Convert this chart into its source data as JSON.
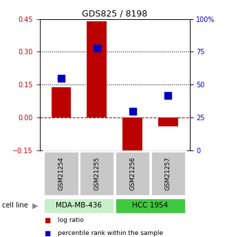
{
  "title": "GDS825 / 8198",
  "samples": [
    "GSM21254",
    "GSM21255",
    "GSM21256",
    "GSM21257"
  ],
  "log_ratio": [
    0.14,
    0.44,
    -0.18,
    -0.04
  ],
  "percentile_rank": [
    55,
    78,
    30,
    42
  ],
  "ylim_left": [
    -0.15,
    0.45
  ],
  "ylim_right": [
    0,
    100
  ],
  "yticks_left": [
    -0.15,
    0.0,
    0.15,
    0.3,
    0.45
  ],
  "yticks_right": [
    0,
    25,
    50,
    75,
    100
  ],
  "hlines_dotted": [
    0.15,
    0.3
  ],
  "hline_dashed": 0.0,
  "cell_lines": [
    {
      "label": "MDA-MB-436",
      "samples": [
        0,
        1
      ],
      "color": "#c8f0c8"
    },
    {
      "label": "HCC 1954",
      "samples": [
        2,
        3
      ],
      "color": "#40c840"
    }
  ],
  "bar_color": "#bb0000",
  "dot_color": "#0000bb",
  "bar_width": 0.55,
  "dot_size": 45,
  "bg_color": "#ffffff",
  "left_tick_color": "#cc0000",
  "right_tick_color": "#0000cc",
  "sample_box_color": "#c8c8c8",
  "cell_line_label": "cell line",
  "legend_red": "log ratio",
  "legend_blue": "percentile rank within the sample"
}
